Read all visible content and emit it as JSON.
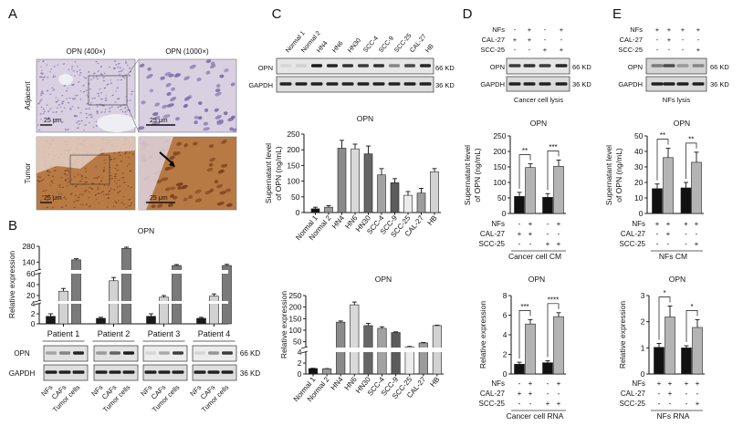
{
  "panels": {
    "A": {
      "label": "A",
      "col_titles": [
        "OPN (400×)",
        "OPN (1000×)"
      ],
      "row_labels": [
        "Adjacent",
        "Tumor"
      ],
      "scale_bar": "25 μm",
      "colors": {
        "adjacent": "#d9d0e2",
        "adjacent_nuclei": "#7a6aa8",
        "tumor": "#b87a44",
        "tumor_nuclei": "#7a3f1c"
      }
    },
    "B": {
      "label": "B",
      "blot": {
        "rows": [
          "OPN",
          "GAPDH"
        ],
        "kd": [
          "66 KD",
          "36 KD"
        ],
        "lanes": [
          "NFs",
          "CAFs",
          "Tumor cells"
        ]
      }
    },
    "C": {
      "label": "C",
      "blot": {
        "rows": [
          "OPN",
          "GAPDH"
        ],
        "kd": [
          "66 KD",
          "36 KD"
        ],
        "lanes": [
          "Normal 1",
          "Normal 2",
          "HN4",
          "HN6",
          "HN30",
          "SCC-4",
          "SCC-9",
          "SCC-25",
          "CAL-27",
          "HB"
        ]
      }
    },
    "D": {
      "label": "D",
      "blot": {
        "rows": [
          "OPN",
          "GAPDH"
        ],
        "kd": [
          "66 KD",
          "36 KD"
        ],
        "caption": "Cancer cell lysis",
        "conditions": [
          {
            "name": "NFs",
            "marks": [
              "-",
              "+",
              "-",
              "+"
            ]
          },
          {
            "name": "CAL-27",
            "marks": [
              "+",
              "+",
              "-",
              "-"
            ]
          },
          {
            "name": "SCC-25",
            "marks": [
              "-",
              "-",
              "+",
              "+"
            ]
          }
        ]
      }
    },
    "E": {
      "label": "E",
      "blot": {
        "rows": [
          "OPN",
          "GAPDH"
        ],
        "kd": [
          "66 KD",
          "36 KD"
        ],
        "caption": "NFs lysis",
        "conditions": [
          {
            "name": "NFs",
            "marks": [
              "+",
              "+",
              "+",
              "+"
            ]
          },
          {
            "name": "CAL-27",
            "marks": [
              "-",
              "+",
              "-",
              "-"
            ]
          },
          {
            "name": "SCC-25",
            "marks": [
              "-",
              "-",
              "-",
              "+"
            ]
          }
        ]
      }
    }
  },
  "chart_data": [
    {
      "id": "B",
      "type": "bar",
      "title": "OPN",
      "ylabel": "Relative expression",
      "groups": [
        "Patient 1",
        "Patient 2",
        "Patient 3",
        "Patient 4"
      ],
      "series": [
        "NFs",
        "CAFs",
        "Tumor cells"
      ],
      "values": [
        1.5,
        28,
        160,
        1.1,
        47,
        262,
        1.5,
        17,
        110,
        1.1,
        19,
        110
      ],
      "errors": [
        0.5,
        5,
        10,
        0.2,
        6,
        10,
        0.5,
        3,
        8,
        0.2,
        4,
        10
      ],
      "colors": [
        "#1a1a1a",
        "#d2d2d2",
        "#7a7a7a"
      ],
      "yticks": [
        0,
        2,
        4,
        20,
        40,
        60,
        140,
        280
      ],
      "axis_breaks": [
        [
          4,
          10
        ],
        [
          60,
          70
        ]
      ],
      "ylim": [
        0,
        280
      ]
    },
    {
      "id": "C1",
      "type": "bar",
      "title": "OPN",
      "ylabel": [
        "Supernatant level",
        "of OPN (ng/mL)"
      ],
      "categories": [
        "Normal 1",
        "Normal 2",
        "HN4",
        "HN6",
        "HN30",
        "SCC-4",
        "SCC-9",
        "SCC-25",
        "CAL-27",
        "HB"
      ],
      "values": [
        12,
        17,
        205,
        203,
        187,
        120,
        95,
        55,
        62,
        130
      ],
      "errors": [
        5,
        5,
        25,
        15,
        25,
        20,
        13,
        12,
        15,
        10
      ],
      "colors": [
        "#111111",
        "#9a9a9a",
        "#8a8a8a",
        "#d9d9d9",
        "#666666",
        "#a2a2a2",
        "#5c5c5c",
        "#ececec",
        "#9c9c9c",
        "#d2d2d2"
      ],
      "yticks": [
        0,
        50,
        100,
        150,
        200,
        250
      ],
      "ylim": [
        0,
        250
      ]
    },
    {
      "id": "C2",
      "type": "bar",
      "title": "OPN",
      "ylabel": "Relative expression",
      "categories": [
        "Normal 1",
        "Normal 2",
        "HN4",
        "HN6",
        "HN30",
        "SCC-4",
        "SCC-9",
        "SCC-25",
        "CAL-27",
        "HB"
      ],
      "values": [
        1,
        0.95,
        135,
        210,
        120,
        108,
        90,
        28,
        45,
        120
      ],
      "errors": [
        0.05,
        0.05,
        5,
        12,
        10,
        7,
        3,
        2,
        2,
        2
      ],
      "colors": [
        "#111111",
        "#9a9a9a",
        "#8a8a8a",
        "#d9d9d9",
        "#666666",
        "#a2a2a2",
        "#5c5c5c",
        "#ececec",
        "#9c9c9c",
        "#d2d2d2"
      ],
      "yticks": [
        0,
        2,
        4,
        50,
        100,
        150,
        200,
        250
      ],
      "axis_breaks": [
        [
          4,
          25
        ]
      ],
      "ylim": [
        0,
        250
      ]
    },
    {
      "id": "D1",
      "type": "bar",
      "title": "OPN",
      "ylabel": [
        "Supernatant level",
        "of OPN (ng/mL)"
      ],
      "values": [
        55,
        148,
        52,
        152
      ],
      "errors": [
        13,
        12,
        12,
        20
      ],
      "colors": [
        "#111111",
        "#b4b4b4",
        "#111111",
        "#b4b4b4"
      ],
      "yticks": [
        0,
        50,
        100,
        150,
        200,
        250
      ],
      "ylim": [
        0,
        250
      ],
      "significance": [
        {
          "pair": [
            0,
            1
          ],
          "label": "**"
        },
        {
          "pair": [
            2,
            3
          ],
          "label": "***"
        }
      ],
      "conditions": [
        {
          "name": "NFs",
          "marks": [
            "-",
            "+",
            "-",
            "+"
          ]
        },
        {
          "name": "CAL-27",
          "marks": [
            "+",
            "+",
            "-",
            "-"
          ]
        },
        {
          "name": "SCC-25",
          "marks": [
            "-",
            "-",
            "+",
            "+"
          ]
        }
      ],
      "caption": "Cancer cell CM"
    },
    {
      "id": "D2",
      "type": "bar",
      "title": "OPN",
      "ylabel": "Relative expression",
      "values": [
        1.0,
        5.1,
        1.15,
        5.85
      ],
      "errors": [
        0.2,
        0.45,
        0.2,
        0.4
      ],
      "colors": [
        "#111111",
        "#b4b4b4",
        "#111111",
        "#b4b4b4"
      ],
      "yticks": [
        0,
        2,
        4,
        6,
        8
      ],
      "ylim": [
        0,
        8
      ],
      "significance": [
        {
          "pair": [
            0,
            1
          ],
          "label": "***"
        },
        {
          "pair": [
            2,
            3
          ],
          "label": "****"
        }
      ],
      "conditions": [
        {
          "name": "NFs",
          "marks": [
            "-",
            "+",
            "-",
            "+"
          ]
        },
        {
          "name": "CAL-27",
          "marks": [
            "+",
            "+",
            "-",
            "-"
          ]
        },
        {
          "name": "SCC-25",
          "marks": [
            "-",
            "-",
            "+",
            "+"
          ]
        }
      ],
      "caption": "Cancer cell RNA"
    },
    {
      "id": "E1",
      "type": "bar",
      "title": "OPN",
      "ylabel": [
        "Supernatant level",
        "of OPN (ng/mL)"
      ],
      "values": [
        16,
        36,
        16.5,
        33
      ],
      "errors": [
        3,
        6,
        3.5,
        6.5
      ],
      "colors": [
        "#111111",
        "#b4b4b4",
        "#111111",
        "#b4b4b4"
      ],
      "yticks": [
        0,
        10,
        20,
        30,
        40,
        50
      ],
      "ylim": [
        0,
        50
      ],
      "significance": [
        {
          "pair": [
            0,
            1
          ],
          "label": "**"
        },
        {
          "pair": [
            2,
            3
          ],
          "label": "**"
        }
      ],
      "conditions": [
        {
          "name": "NFs",
          "marks": [
            "+",
            "+",
            "+",
            "+"
          ]
        },
        {
          "name": "CAL-27",
          "marks": [
            "-",
            "+",
            "-",
            "-"
          ]
        },
        {
          "name": "SCC-25",
          "marks": [
            "-",
            "-",
            "-",
            "+"
          ]
        }
      ],
      "caption": "NFs CM"
    },
    {
      "id": "E2",
      "type": "bar",
      "title": "OPN",
      "ylabel": "Relative expression",
      "values": [
        1.02,
        2.18,
        1.0,
        1.78
      ],
      "errors": [
        0.15,
        0.42,
        0.08,
        0.3
      ],
      "colors": [
        "#111111",
        "#b4b4b4",
        "#111111",
        "#b4b4b4"
      ],
      "yticks": [
        0,
        1,
        2,
        3
      ],
      "ylim": [
        0,
        3
      ],
      "significance": [
        {
          "pair": [
            0,
            1
          ],
          "label": "*"
        },
        {
          "pair": [
            2,
            3
          ],
          "label": "*"
        }
      ],
      "conditions": [
        {
          "name": "NFs",
          "marks": [
            "+",
            "+",
            "+",
            "+"
          ]
        },
        {
          "name": "CAL-27",
          "marks": [
            "-",
            "+",
            "-",
            "-"
          ]
        },
        {
          "name": "SCC-25",
          "marks": [
            "-",
            "-",
            "-",
            "+"
          ]
        }
      ],
      "caption": "NFs RNA"
    }
  ]
}
